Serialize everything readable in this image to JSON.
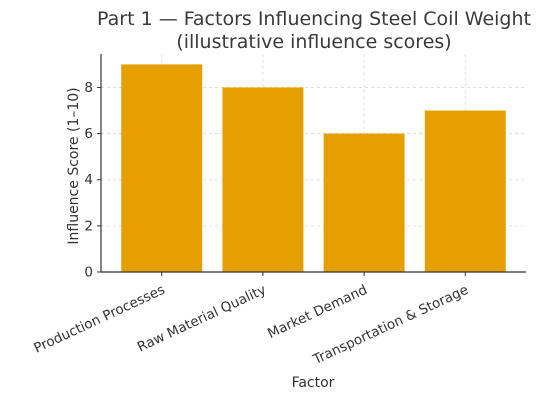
{
  "chart_data": {
    "type": "bar",
    "title": [
      "Part 1 — Factors Influencing Steel Coil Weight",
      "(illustrative influence scores)"
    ],
    "xlabel": "Factor",
    "ylabel": "Influence Score (1–10)",
    "categories": [
      "Production Processes",
      "Raw Material Quality",
      "Market Demand",
      "Transportation & Storage"
    ],
    "values": [
      9,
      8,
      6,
      7
    ],
    "ylim": [
      0,
      9.45
    ],
    "yticks": [
      0,
      2,
      4,
      6,
      8
    ],
    "grid": true,
    "bar_color": "#E69F00"
  }
}
